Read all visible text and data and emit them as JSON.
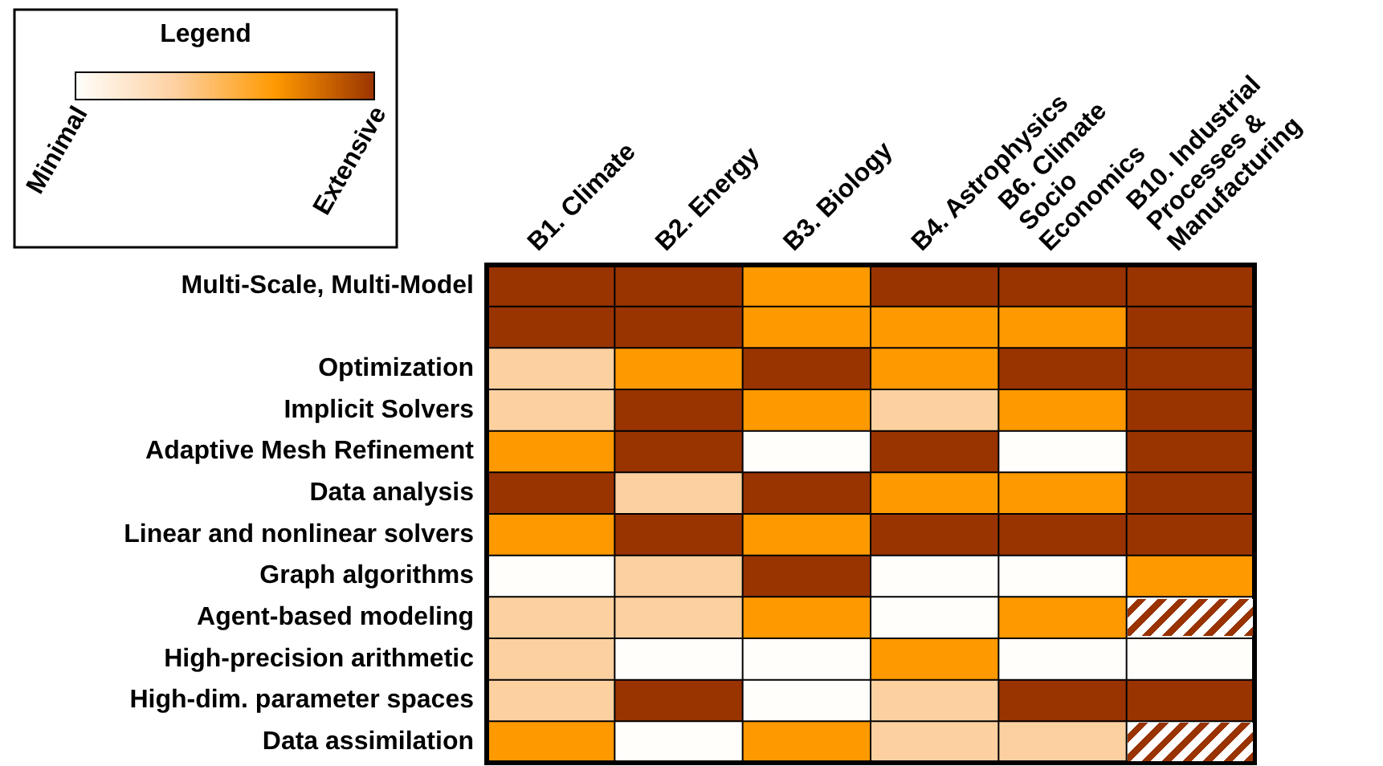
{
  "chart_data": {
    "type": "heatmap",
    "legend_title": "Legend",
    "categories": [
      "B1. Climate",
      "B2. Energy",
      "B3. Biology",
      "B4. Astrophysics",
      "B6. Climate\nSocio\nEconomics",
      "B10. Industrial\nProcesses &\nManufacturing"
    ],
    "y_categories": [
      "Multi-Scale, Multi-Model",
      null,
      "Optimization",
      "Implicit Solvers",
      "Adaptive Mesh Refinement",
      "Data analysis",
      "Linear and nonlinear solvers",
      "Graph algorithms",
      "Agent-based modeling",
      "High-precision arithmetic",
      "High-dim. parameter spaces",
      "Data assimilation"
    ],
    "cells": [
      [
        3,
        3,
        2,
        3,
        3,
        3
      ],
      [
        3,
        3,
        2,
        2,
        2,
        3
      ],
      [
        1,
        2,
        3,
        2,
        3,
        3
      ],
      [
        1,
        3,
        2,
        1,
        2,
        3
      ],
      [
        2,
        3,
        0,
        3,
        0,
        3
      ],
      [
        3,
        1,
        3,
        2,
        2,
        3
      ],
      [
        2,
        3,
        2,
        3,
        3,
        3
      ],
      [
        0,
        1,
        3,
        0,
        0,
        2
      ],
      [
        1,
        1,
        2,
        0,
        2,
        null
      ],
      [
        1,
        0,
        0,
        2,
        0,
        0
      ],
      [
        1,
        3,
        0,
        1,
        3,
        3
      ],
      [
        2,
        0,
        2,
        1,
        1,
        null
      ]
    ],
    "clim": [
      0,
      3
    ],
    "cticks": [
      {
        "value": 0,
        "label": "Minimal"
      },
      {
        "value": 3,
        "label": "Extensive"
      }
    ]
  }
}
